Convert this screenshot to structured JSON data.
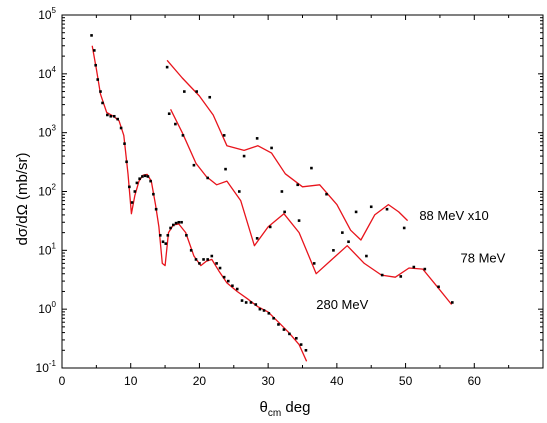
{
  "chart_data": {
    "type": "scatter",
    "xlabel_main": "θ",
    "xlabel_sub": "cm",
    "xlabel_rest": " deg",
    "ylabel": "dσ/dΩ (mb/sr)",
    "xlim": [
      0,
      70
    ],
    "ylim": [
      0.1,
      100000
    ],
    "yscale": "log",
    "x_ticks": [
      "0",
      "10",
      "20",
      "30",
      "40",
      "50",
      "60"
    ],
    "y_ticks": [
      {
        "base": "10",
        "exp": "-1",
        "value": 0.1
      },
      {
        "base": "10",
        "exp": "0",
        "value": 1
      },
      {
        "base": "10",
        "exp": "1",
        "value": 10
      },
      {
        "base": "10",
        "exp": "2",
        "value": 100
      },
      {
        "base": "10",
        "exp": "3",
        "value": 1000
      },
      {
        "base": "10",
        "exp": "4",
        "value": 10000
      },
      {
        "base": "10",
        "exp": "5",
        "value": 100000
      }
    ],
    "line_color": "#e8141c",
    "point_color": "#000000",
    "series": [
      {
        "name": "280 MeV",
        "label_pos": [
          37,
          1.0
        ],
        "points": [
          [
            4.3,
            45000
          ],
          [
            4.7,
            25000
          ],
          [
            4.9,
            14000
          ],
          [
            5.2,
            8000
          ],
          [
            5.6,
            5000
          ],
          [
            5.9,
            3200
          ],
          [
            6.6,
            2000
          ],
          [
            7.1,
            1900
          ],
          [
            7.6,
            1900
          ],
          [
            8.1,
            1700
          ],
          [
            8.6,
            1200
          ],
          [
            9.1,
            650
          ],
          [
            9.4,
            320
          ],
          [
            9.8,
            120
          ],
          [
            10.2,
            65
          ],
          [
            10.6,
            100
          ],
          [
            10.9,
            140
          ],
          [
            11.3,
            165
          ],
          [
            11.7,
            180
          ],
          [
            12.1,
            185
          ],
          [
            12.5,
            180
          ],
          [
            12.9,
            150
          ],
          [
            13.3,
            90
          ],
          [
            13.7,
            50
          ],
          [
            14.3,
            18
          ],
          [
            14.7,
            14
          ],
          [
            15.1,
            13
          ],
          [
            15.4,
            18
          ],
          [
            15.8,
            24
          ],
          [
            16.2,
            27
          ],
          [
            16.6,
            29
          ],
          [
            17.0,
            30
          ],
          [
            17.4,
            30
          ],
          [
            18.1,
            18
          ],
          [
            18.8,
            10
          ],
          [
            19.5,
            7
          ],
          [
            20.0,
            6
          ],
          [
            20.6,
            7
          ],
          [
            21.2,
            7
          ],
          [
            21.8,
            8
          ],
          [
            22.5,
            6
          ],
          [
            23.0,
            5
          ],
          [
            23.6,
            3.5
          ],
          [
            24.2,
            3
          ],
          [
            24.8,
            2.5
          ],
          [
            25.5,
            2.2
          ],
          [
            26.2,
            1.4
          ],
          [
            26.8,
            1.3
          ],
          [
            27.5,
            1.3
          ],
          [
            28.2,
            1.2
          ],
          [
            28.8,
            1.0
          ],
          [
            29.4,
            0.95
          ],
          [
            30.1,
            0.85
          ],
          [
            30.8,
            0.7
          ],
          [
            31.5,
            0.55
          ],
          [
            32.3,
            0.45
          ],
          [
            33.1,
            0.38
          ],
          [
            34.1,
            0.32
          ],
          [
            34.8,
            0.25
          ],
          [
            35.5,
            0.2
          ]
        ],
        "curve": [
          [
            4.4,
            30000
          ],
          [
            5.0,
            12000
          ],
          [
            5.6,
            4500
          ],
          [
            6.5,
            2200
          ],
          [
            7.5,
            1900
          ],
          [
            8.3,
            1600
          ],
          [
            9.0,
            900
          ],
          [
            9.6,
            200
          ],
          [
            10.1,
            42
          ],
          [
            10.6,
            85
          ],
          [
            11.2,
            150
          ],
          [
            11.8,
            190
          ],
          [
            12.4,
            195
          ],
          [
            13.0,
            150
          ],
          [
            13.6,
            60
          ],
          [
            14.1,
            25
          ],
          [
            14.6,
            6
          ],
          [
            15.0,
            5.5
          ],
          [
            15.5,
            20
          ],
          [
            16.2,
            27
          ],
          [
            17.0,
            28
          ],
          [
            18.0,
            20
          ],
          [
            19.2,
            8
          ],
          [
            20.2,
            5.5
          ],
          [
            21.0,
            6.5
          ],
          [
            21.8,
            7
          ],
          [
            22.8,
            4.5
          ],
          [
            24.0,
            2.8
          ],
          [
            25.5,
            2
          ],
          [
            27.0,
            1.5
          ],
          [
            28.5,
            1.1
          ],
          [
            30.0,
            0.9
          ],
          [
            31.5,
            0.6
          ],
          [
            33.0,
            0.4
          ],
          [
            34.5,
            0.25
          ],
          [
            35.6,
            0.13
          ]
        ]
      },
      {
        "name": "78 MeV",
        "label_pos": [
          58,
          6.2
        ],
        "points": [
          [
            15.6,
            2100
          ],
          [
            16.5,
            1400
          ],
          [
            17.6,
            900
          ],
          [
            19.2,
            280
          ],
          [
            21.2,
            170
          ],
          [
            23.8,
            240
          ],
          [
            25.8,
            100
          ],
          [
            28.4,
            16
          ],
          [
            30.3,
            25
          ],
          [
            32.4,
            45
          ],
          [
            34.5,
            32
          ],
          [
            36.7,
            6
          ],
          [
            39.5,
            10
          ],
          [
            41.7,
            14
          ],
          [
            44.3,
            8
          ],
          [
            46.6,
            3.8
          ],
          [
            49.3,
            3.6
          ],
          [
            51.2,
            5.2
          ],
          [
            52.8,
            4.8
          ],
          [
            54.8,
            2.4
          ],
          [
            56.8,
            1.3
          ]
        ],
        "curve": [
          [
            15.8,
            2500
          ],
          [
            17.5,
            1000
          ],
          [
            19.5,
            300
          ],
          [
            21.0,
            180
          ],
          [
            22.5,
            130
          ],
          [
            24.0,
            150
          ],
          [
            26.0,
            70
          ],
          [
            28.0,
            12
          ],
          [
            30.0,
            25
          ],
          [
            32.3,
            42
          ],
          [
            34.5,
            20
          ],
          [
            37.0,
            4
          ],
          [
            39.3,
            7
          ],
          [
            41.5,
            12
          ],
          [
            44.0,
            6
          ],
          [
            46.5,
            3.8
          ],
          [
            48.5,
            3.5
          ],
          [
            50.5,
            5
          ],
          [
            52.5,
            4.8
          ],
          [
            54.5,
            2.5
          ],
          [
            56.7,
            1.2
          ]
        ]
      },
      {
        "name": "88 MeV x10",
        "label_pos": [
          52,
          33
        ],
        "points": [
          [
            15.3,
            13000
          ],
          [
            17.8,
            5000
          ],
          [
            19.6,
            5000
          ],
          [
            21.5,
            4000
          ],
          [
            23.6,
            900
          ],
          [
            26.5,
            400
          ],
          [
            28.4,
            800
          ],
          [
            30.5,
            550
          ],
          [
            32.0,
            100
          ],
          [
            34.3,
            130
          ],
          [
            36.3,
            250
          ],
          [
            38.5,
            90
          ],
          [
            40.8,
            20
          ],
          [
            42.8,
            45
          ],
          [
            45.0,
            55
          ],
          [
            47.3,
            50
          ],
          [
            49.8,
            24
          ]
        ],
        "curve": [
          [
            15.3,
            17000
          ],
          [
            17.5,
            8500
          ],
          [
            20.0,
            4200
          ],
          [
            22.0,
            2000
          ],
          [
            24.0,
            600
          ],
          [
            26.5,
            500
          ],
          [
            28.5,
            600
          ],
          [
            30.5,
            450
          ],
          [
            32.5,
            200
          ],
          [
            35.0,
            120
          ],
          [
            37.5,
            130
          ],
          [
            40.0,
            60
          ],
          [
            42.0,
            22
          ],
          [
            43.5,
            15
          ],
          [
            45.5,
            40
          ],
          [
            47.5,
            60
          ],
          [
            49.0,
            45
          ],
          [
            50.3,
            32
          ]
        ]
      }
    ]
  }
}
